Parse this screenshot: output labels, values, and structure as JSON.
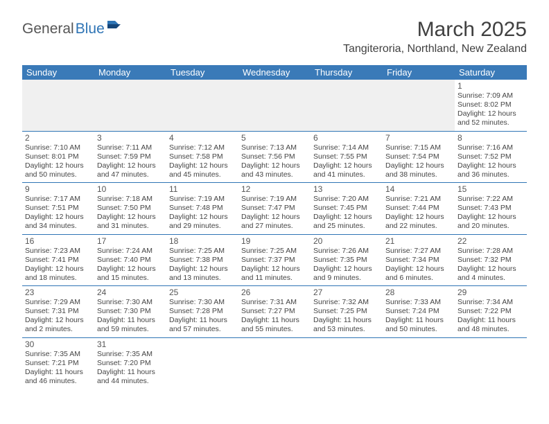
{
  "logo": {
    "general": "General",
    "blue": "Blue"
  },
  "title": "March 2025",
  "location": "Tangiteroria, Northland, New Zealand",
  "colors": {
    "header_bg": "#3a7ab8",
    "border": "#2e74b5",
    "blank_bg": "#f0f0f0",
    "text": "#333333"
  },
  "day_headers": [
    "Sunday",
    "Monday",
    "Tuesday",
    "Wednesday",
    "Thursday",
    "Friday",
    "Saturday"
  ],
  "weeks": [
    [
      null,
      null,
      null,
      null,
      null,
      null,
      {
        "n": "1",
        "sunrise": "Sunrise: 7:09 AM",
        "sunset": "Sunset: 8:02 PM",
        "daylight": "Daylight: 12 hours and 52 minutes."
      }
    ],
    [
      {
        "n": "2",
        "sunrise": "Sunrise: 7:10 AM",
        "sunset": "Sunset: 8:01 PM",
        "daylight": "Daylight: 12 hours and 50 minutes."
      },
      {
        "n": "3",
        "sunrise": "Sunrise: 7:11 AM",
        "sunset": "Sunset: 7:59 PM",
        "daylight": "Daylight: 12 hours and 47 minutes."
      },
      {
        "n": "4",
        "sunrise": "Sunrise: 7:12 AM",
        "sunset": "Sunset: 7:58 PM",
        "daylight": "Daylight: 12 hours and 45 minutes."
      },
      {
        "n": "5",
        "sunrise": "Sunrise: 7:13 AM",
        "sunset": "Sunset: 7:56 PM",
        "daylight": "Daylight: 12 hours and 43 minutes."
      },
      {
        "n": "6",
        "sunrise": "Sunrise: 7:14 AM",
        "sunset": "Sunset: 7:55 PM",
        "daylight": "Daylight: 12 hours and 41 minutes."
      },
      {
        "n": "7",
        "sunrise": "Sunrise: 7:15 AM",
        "sunset": "Sunset: 7:54 PM",
        "daylight": "Daylight: 12 hours and 38 minutes."
      },
      {
        "n": "8",
        "sunrise": "Sunrise: 7:16 AM",
        "sunset": "Sunset: 7:52 PM",
        "daylight": "Daylight: 12 hours and 36 minutes."
      }
    ],
    [
      {
        "n": "9",
        "sunrise": "Sunrise: 7:17 AM",
        "sunset": "Sunset: 7:51 PM",
        "daylight": "Daylight: 12 hours and 34 minutes."
      },
      {
        "n": "10",
        "sunrise": "Sunrise: 7:18 AM",
        "sunset": "Sunset: 7:50 PM",
        "daylight": "Daylight: 12 hours and 31 minutes."
      },
      {
        "n": "11",
        "sunrise": "Sunrise: 7:19 AM",
        "sunset": "Sunset: 7:48 PM",
        "daylight": "Daylight: 12 hours and 29 minutes."
      },
      {
        "n": "12",
        "sunrise": "Sunrise: 7:19 AM",
        "sunset": "Sunset: 7:47 PM",
        "daylight": "Daylight: 12 hours and 27 minutes."
      },
      {
        "n": "13",
        "sunrise": "Sunrise: 7:20 AM",
        "sunset": "Sunset: 7:45 PM",
        "daylight": "Daylight: 12 hours and 25 minutes."
      },
      {
        "n": "14",
        "sunrise": "Sunrise: 7:21 AM",
        "sunset": "Sunset: 7:44 PM",
        "daylight": "Daylight: 12 hours and 22 minutes."
      },
      {
        "n": "15",
        "sunrise": "Sunrise: 7:22 AM",
        "sunset": "Sunset: 7:43 PM",
        "daylight": "Daylight: 12 hours and 20 minutes."
      }
    ],
    [
      {
        "n": "16",
        "sunrise": "Sunrise: 7:23 AM",
        "sunset": "Sunset: 7:41 PM",
        "daylight": "Daylight: 12 hours and 18 minutes."
      },
      {
        "n": "17",
        "sunrise": "Sunrise: 7:24 AM",
        "sunset": "Sunset: 7:40 PM",
        "daylight": "Daylight: 12 hours and 15 minutes."
      },
      {
        "n": "18",
        "sunrise": "Sunrise: 7:25 AM",
        "sunset": "Sunset: 7:38 PM",
        "daylight": "Daylight: 12 hours and 13 minutes."
      },
      {
        "n": "19",
        "sunrise": "Sunrise: 7:25 AM",
        "sunset": "Sunset: 7:37 PM",
        "daylight": "Daylight: 12 hours and 11 minutes."
      },
      {
        "n": "20",
        "sunrise": "Sunrise: 7:26 AM",
        "sunset": "Sunset: 7:35 PM",
        "daylight": "Daylight: 12 hours and 9 minutes."
      },
      {
        "n": "21",
        "sunrise": "Sunrise: 7:27 AM",
        "sunset": "Sunset: 7:34 PM",
        "daylight": "Daylight: 12 hours and 6 minutes."
      },
      {
        "n": "22",
        "sunrise": "Sunrise: 7:28 AM",
        "sunset": "Sunset: 7:32 PM",
        "daylight": "Daylight: 12 hours and 4 minutes."
      }
    ],
    [
      {
        "n": "23",
        "sunrise": "Sunrise: 7:29 AM",
        "sunset": "Sunset: 7:31 PM",
        "daylight": "Daylight: 12 hours and 2 minutes."
      },
      {
        "n": "24",
        "sunrise": "Sunrise: 7:30 AM",
        "sunset": "Sunset: 7:30 PM",
        "daylight": "Daylight: 11 hours and 59 minutes."
      },
      {
        "n": "25",
        "sunrise": "Sunrise: 7:30 AM",
        "sunset": "Sunset: 7:28 PM",
        "daylight": "Daylight: 11 hours and 57 minutes."
      },
      {
        "n": "26",
        "sunrise": "Sunrise: 7:31 AM",
        "sunset": "Sunset: 7:27 PM",
        "daylight": "Daylight: 11 hours and 55 minutes."
      },
      {
        "n": "27",
        "sunrise": "Sunrise: 7:32 AM",
        "sunset": "Sunset: 7:25 PM",
        "daylight": "Daylight: 11 hours and 53 minutes."
      },
      {
        "n": "28",
        "sunrise": "Sunrise: 7:33 AM",
        "sunset": "Sunset: 7:24 PM",
        "daylight": "Daylight: 11 hours and 50 minutes."
      },
      {
        "n": "29",
        "sunrise": "Sunrise: 7:34 AM",
        "sunset": "Sunset: 7:22 PM",
        "daylight": "Daylight: 11 hours and 48 minutes."
      }
    ],
    [
      {
        "n": "30",
        "sunrise": "Sunrise: 7:35 AM",
        "sunset": "Sunset: 7:21 PM",
        "daylight": "Daylight: 11 hours and 46 minutes."
      },
      {
        "n": "31",
        "sunrise": "Sunrise: 7:35 AM",
        "sunset": "Sunset: 7:20 PM",
        "daylight": "Daylight: 11 hours and 44 minutes."
      },
      null,
      null,
      null,
      null,
      null
    ]
  ]
}
